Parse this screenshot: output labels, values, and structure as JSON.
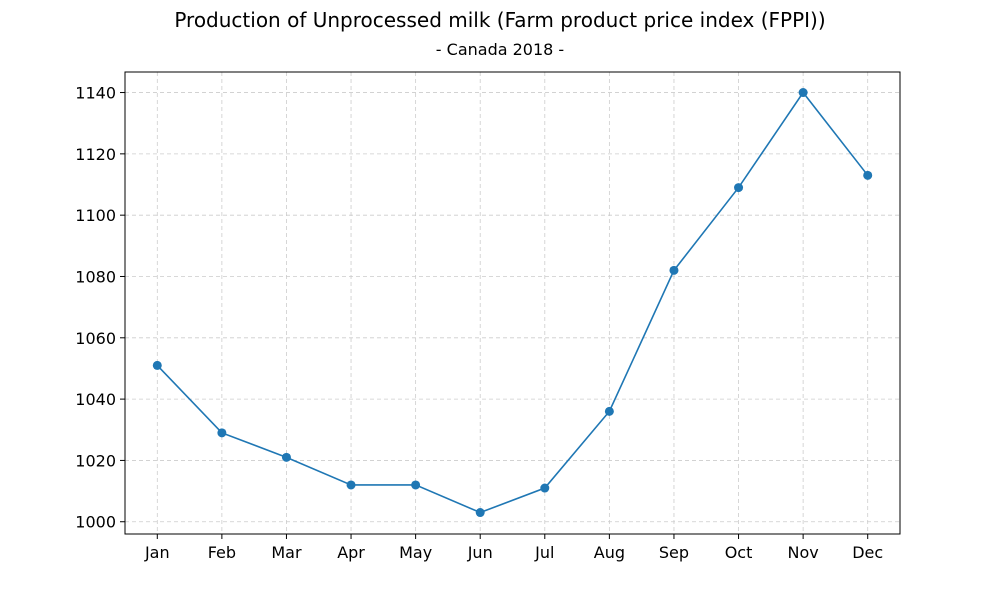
{
  "chart_data": {
    "type": "line",
    "title": "Production of Unprocessed milk (Farm product price index (FPPI))",
    "subtitle": "- Canada 2018 -",
    "xlabel": "",
    "ylabel": "",
    "categories": [
      "Jan",
      "Feb",
      "Mar",
      "Apr",
      "May",
      "Jun",
      "Jul",
      "Aug",
      "Sep",
      "Oct",
      "Nov",
      "Dec"
    ],
    "series": [
      {
        "values": [
          1051,
          1029,
          1021,
          1012,
          1012,
          1003,
          1011,
          1036,
          1082,
          1109,
          1140,
          1113
        ],
        "color": "#1f77b4",
        "marker": "circle"
      }
    ],
    "yticks": [
      1000,
      1020,
      1040,
      1060,
      1080,
      1100,
      1120,
      1140
    ],
    "ylim": [
      996,
      1146.7
    ],
    "grid": true,
    "grid_style": "dashed",
    "grid_color": "#cccccc",
    "legend": false
  }
}
